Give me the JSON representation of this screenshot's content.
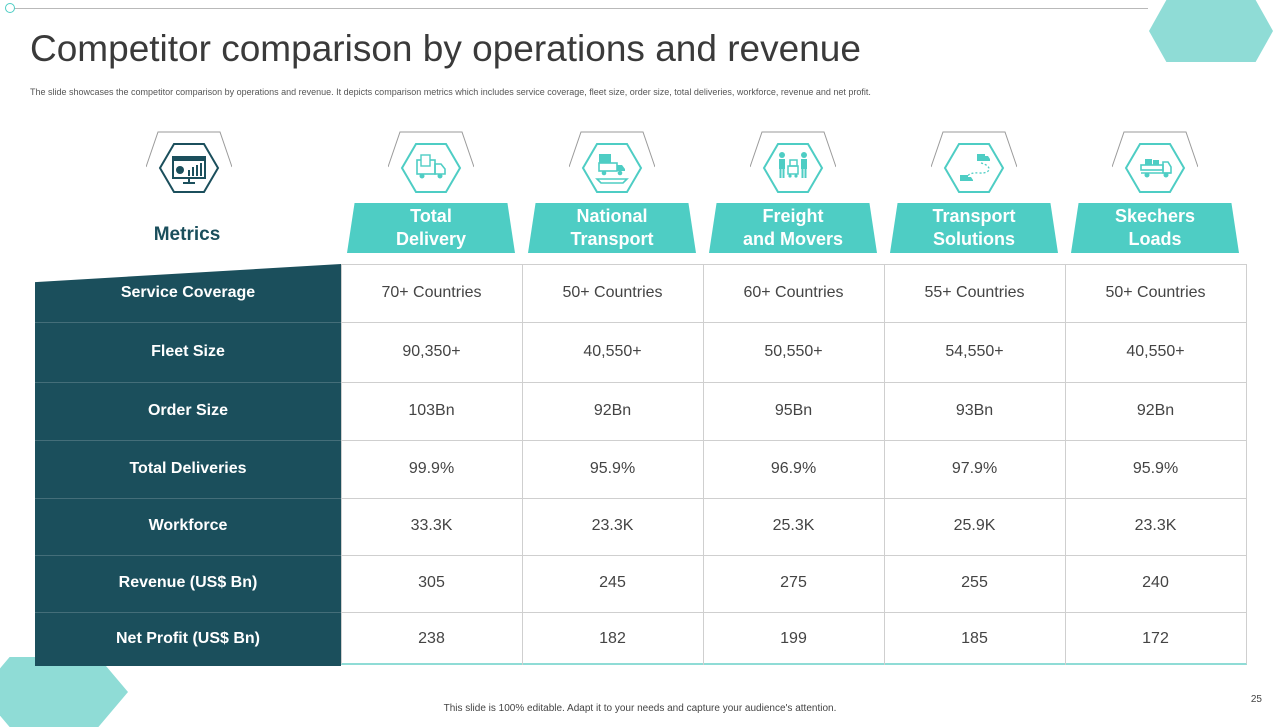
{
  "title": "Competitor comparison by operations and revenue",
  "subtitle": "The slide showcases the competitor comparison by operations and revenue. It depicts comparison metrics which includes service coverage, fleet size, order size, total deliveries, workforce, revenue and net profit.",
  "metrics_label": "Metrics",
  "icons": [
    "dashboard-monitor-icon",
    "delivery-truck-icon",
    "transport-truck-icon",
    "movers-people-icon",
    "route-transport-icon",
    "loaded-truck-icon"
  ],
  "colors": {
    "teal": "#4ecdc4",
    "dark_teal": "#1b4f5c",
    "light_teal": "#8fdcd6"
  },
  "columns": [
    "Total\nDelivery",
    "National\nTransport",
    "Freight\nand Movers",
    "Transport\nSolutions",
    "Skechers\nLoads"
  ],
  "rows": [
    {
      "metric": "Service Coverage",
      "values": [
        "70+ Countries",
        "50+ Countries",
        "60+ Countries",
        "55+ Countries",
        "50+ Countries"
      ]
    },
    {
      "metric": "Fleet Size",
      "values": [
        "90,350+",
        "40,550+",
        "50,550+",
        "54,550+",
        "40,550+"
      ]
    },
    {
      "metric": "Order Size",
      "values": [
        "103Bn",
        "92Bn",
        "95Bn",
        "93Bn",
        "92Bn"
      ]
    },
    {
      "metric": "Total Deliveries",
      "values": [
        "99.9%",
        "95.9%",
        "96.9%",
        "97.9%",
        "95.9%"
      ]
    },
    {
      "metric": "Workforce",
      "values": [
        "33.3K",
        "23.3K",
        "25.3K",
        "25.9K",
        "23.3K"
      ]
    },
    {
      "metric": "Revenue (US$ Bn)",
      "values": [
        "305",
        "245",
        "275",
        "255",
        "240"
      ]
    },
    {
      "metric": "Net Profit (US$ Bn)",
      "values": [
        "238",
        "182",
        "199",
        "185",
        "172"
      ]
    }
  ],
  "footer": "This slide is 100% editable. Adapt it to your needs and capture your audience's attention.",
  "page_number": "25"
}
